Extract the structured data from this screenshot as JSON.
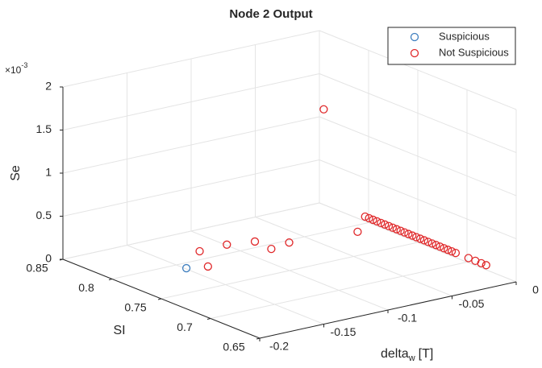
{
  "chart_data": {
    "type": "scatter3d",
    "title": "Node 2 Output",
    "xlabel": "delta",
    "xlabel_subscript": "w",
    "xlabel_suffix": "[T]",
    "ylabel": "SI",
    "zlabel": "Se",
    "zscale_base": "×10",
    "zscale_exponent": "-3",
    "xlim": [
      -0.2,
      0
    ],
    "xticks": [
      -0.2,
      -0.15,
      -0.1,
      -0.05,
      0
    ],
    "ylim": [
      0.65,
      0.85
    ],
    "yticks": [
      0.65,
      0.7,
      0.75,
      0.8,
      0.85
    ],
    "zlim": [
      0,
      2
    ],
    "zticks": [
      0,
      0.5,
      1,
      1.5,
      2
    ],
    "grid": true,
    "legend_position": "upper-right",
    "series": [
      {
        "name": "Suspicious",
        "color": "#3f7fbf",
        "x": [
          -0.149
        ],
        "y": [
          0.791
        ],
        "z": [
          0
        ]
      },
      {
        "name": "Not Suspicious",
        "color": "#e0282a",
        "x": [
          -0.121,
          -0.136,
          -0.099,
          -0.081,
          -0.082,
          -0.065,
          -0.017,
          -0.035,
          -0.005,
          -0.005,
          -0.005,
          -0.005,
          -0.005,
          -0.005,
          -0.005,
          -0.005,
          -0.005,
          -0.005,
          -0.005,
          -0.005,
          -0.005,
          -0.005,
          -0.005,
          -0.005,
          -0.005,
          -0.005,
          -0.005,
          -0.005,
          -0.005,
          -0.005,
          -0.005,
          -0.005,
          -0.005,
          -0.005,
          -0.005,
          -0.005
        ],
        "y": [
          0.814,
          0.786,
          0.815,
          0.81,
          0.792,
          0.796,
          0.789,
          0.8,
          0.797,
          0.793,
          0.789,
          0.785,
          0.781,
          0.777,
          0.773,
          0.769,
          0.765,
          0.761,
          0.757,
          0.753,
          0.749,
          0.745,
          0.741,
          0.737,
          0.733,
          0.729,
          0.725,
          0.721,
          0.717,
          0.713,
          0.709,
          0.705,
          0.692,
          0.685,
          0.679,
          0.674
        ],
        "z": [
          0,
          0,
          0,
          0,
          0,
          0,
          0,
          1.43,
          0.1,
          0.1,
          0.1,
          0.1,
          0.1,
          0.1,
          0.1,
          0.1,
          0.1,
          0.1,
          0.1,
          0.1,
          0.1,
          0.1,
          0.1,
          0.1,
          0.1,
          0.1,
          0.1,
          0.1,
          0.1,
          0.1,
          0.1,
          0.1,
          0.1,
          0.1,
          0.1,
          0.1
        ]
      }
    ]
  }
}
